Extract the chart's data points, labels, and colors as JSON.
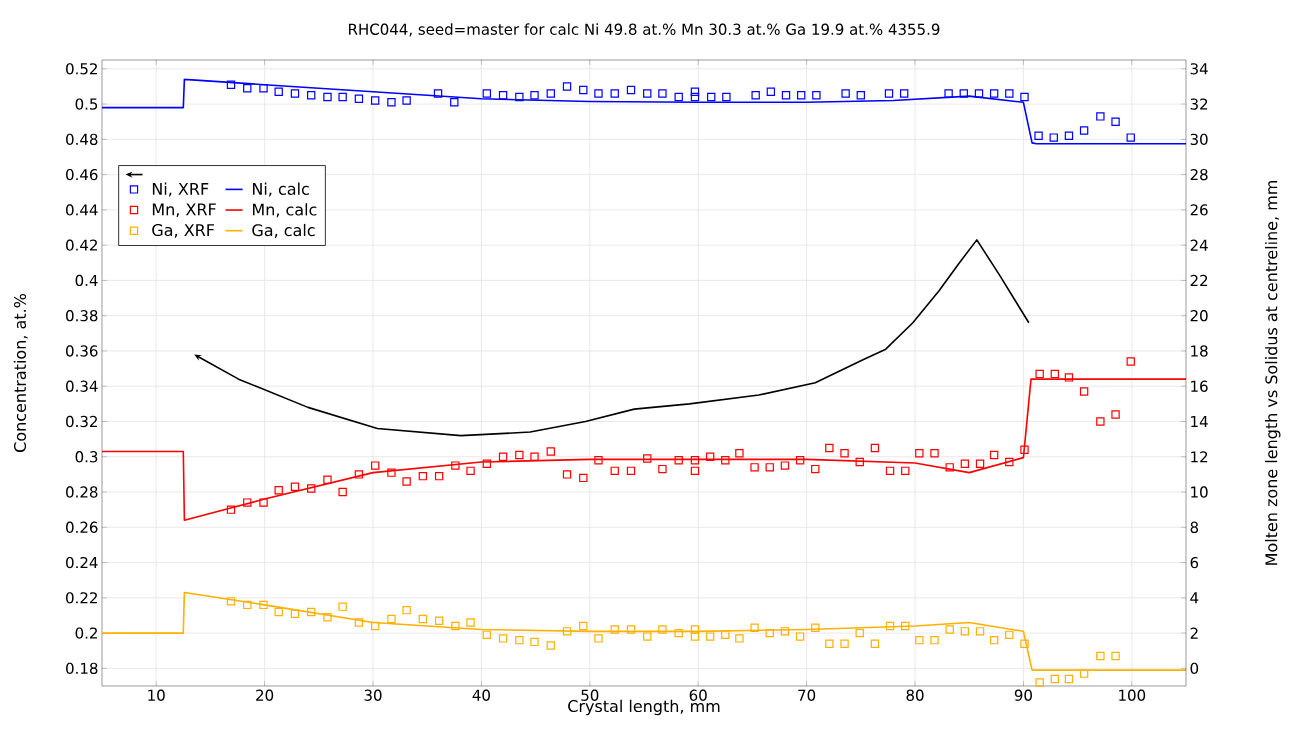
{
  "chart_data": {
    "type": "scatter",
    "title": "RHC044, seed=master for calc Ni 49.8 at.% Mn 30.3 at.% Ga 19.9 at.% 4355.9",
    "xlabel": "Crystal length, mm",
    "ylabel": "Concentration, at.%",
    "y2label": "Molten zone length vs Solidus at centreline, mm",
    "xlim": [
      5,
      105
    ],
    "xticks": [
      10,
      20,
      30,
      40,
      50,
      60,
      70,
      80,
      90,
      100
    ],
    "ylim": [
      0.17,
      0.525
    ],
    "yticks": [
      0.18,
      0.2,
      0.22,
      0.24,
      0.26,
      0.28,
      0.3,
      0.32,
      0.34,
      0.36,
      0.38,
      0.4,
      0.42,
      0.44,
      0.46,
      0.48,
      0.5,
      0.52
    ],
    "y2lim": [
      -1,
      34.5
    ],
    "y2ticks": [
      0,
      2,
      4,
      6,
      8,
      10,
      12,
      14,
      16,
      18,
      20,
      22,
      24,
      26,
      28,
      30,
      32,
      34
    ],
    "grid": true,
    "legend": "top left",
    "line_style": "solid",
    "series": [
      {
        "name": "Ni, XRF",
        "marker": "square",
        "color": "#0000ff",
        "x": [
          16.9,
          18.4,
          19.9,
          21.3,
          22.8,
          24.3,
          25.8,
          27.2,
          28.7,
          30.2,
          31.7,
          33.1,
          36.0,
          37.5,
          40.5,
          42.0,
          43.5,
          44.9,
          46.4,
          47.9,
          49.4,
          50.8,
          52.3,
          53.8,
          55.3,
          56.7,
          58.2,
          59.7,
          59.7,
          61.2,
          62.6,
          65.3,
          66.7,
          68.1,
          69.5,
          70.9,
          73.6,
          75.0,
          77.6,
          79.0,
          83.1,
          84.5,
          85.9,
          87.3,
          88.7,
          90.1,
          91.4,
          92.8,
          94.2,
          95.6,
          97.1,
          98.5,
          99.9
        ],
        "values": [
          0.511,
          0.509,
          0.509,
          0.507,
          0.506,
          0.505,
          0.504,
          0.504,
          0.503,
          0.502,
          0.501,
          0.502,
          0.506,
          0.501,
          0.506,
          0.505,
          0.504,
          0.505,
          0.506,
          0.51,
          0.508,
          0.506,
          0.506,
          0.508,
          0.506,
          0.506,
          0.504,
          0.507,
          0.504,
          0.504,
          0.504,
          0.505,
          0.507,
          0.505,
          0.505,
          0.505,
          0.506,
          0.505,
          0.506,
          0.506,
          0.506,
          0.506,
          0.506,
          0.506,
          0.506,
          0.504,
          0.482,
          0.481,
          0.482,
          0.485,
          0.493,
          0.49,
          0.481
        ]
      },
      {
        "name": "Ni, calc",
        "type": "line",
        "marker": "none",
        "color": "#0000ff",
        "x": [
          5,
          12.5,
          12.6,
          20,
          30,
          40,
          50,
          60,
          70,
          78,
          85,
          90,
          90.8,
          91.2,
          105
        ],
        "values": [
          0.498,
          0.498,
          0.514,
          0.511,
          0.507,
          0.503,
          0.5015,
          0.501,
          0.501,
          0.502,
          0.5045,
          0.501,
          0.478,
          0.4775,
          0.4775
        ]
      },
      {
        "name": "Mn, XRF",
        "marker": "square",
        "color": "#ff0000",
        "x": [
          16.9,
          18.4,
          19.9,
          21.3,
          22.8,
          24.3,
          25.8,
          27.2,
          28.7,
          30.2,
          31.7,
          33.1,
          34.6,
          36.1,
          37.6,
          39.0,
          40.5,
          42.0,
          43.5,
          44.9,
          46.4,
          47.9,
          49.4,
          50.8,
          52.3,
          53.8,
          55.3,
          56.7,
          58.2,
          59.7,
          59.7,
          61.1,
          62.5,
          63.8,
          65.2,
          66.6,
          68.0,
          69.4,
          70.8,
          72.1,
          73.5,
          74.9,
          76.3,
          77.7,
          79.1,
          80.4,
          81.8,
          83.2,
          84.6,
          86.0,
          87.3,
          88.7,
          90.1,
          91.5,
          92.9,
          94.2,
          95.6,
          97.1,
          98.5,
          99.9
        ],
        "values": [
          0.27,
          0.274,
          0.274,
          0.281,
          0.283,
          0.282,
          0.287,
          0.28,
          0.29,
          0.295,
          0.291,
          0.286,
          0.289,
          0.289,
          0.295,
          0.292,
          0.296,
          0.3,
          0.301,
          0.3,
          0.303,
          0.29,
          0.288,
          0.298,
          0.292,
          0.292,
          0.299,
          0.293,
          0.298,
          0.298,
          0.292,
          0.3,
          0.298,
          0.302,
          0.294,
          0.294,
          0.295,
          0.298,
          0.293,
          0.305,
          0.302,
          0.297,
          0.305,
          0.292,
          0.292,
          0.302,
          0.302,
          0.294,
          0.296,
          0.296,
          0.301,
          0.297,
          0.304,
          0.347,
          0.347,
          0.345,
          0.337,
          0.32,
          0.324,
          0.354
        ]
      },
      {
        "name": "Mn, calc",
        "type": "line",
        "marker": "none",
        "color": "#ff0000",
        "x": [
          5,
          12.5,
          12.6,
          20,
          30,
          40,
          50,
          60,
          70,
          80,
          85,
          90,
          90.7,
          105
        ],
        "values": [
          0.303,
          0.303,
          0.264,
          0.276,
          0.291,
          0.297,
          0.2985,
          0.2985,
          0.2985,
          0.2965,
          0.291,
          0.2995,
          0.344,
          0.344
        ]
      },
      {
        "name": "Ga, XRF",
        "marker": "square",
        "color": "#ffb000",
        "x": [
          16.9,
          18.4,
          19.9,
          21.3,
          22.8,
          24.3,
          25.8,
          27.2,
          28.7,
          30.2,
          31.7,
          33.1,
          34.6,
          36.1,
          37.6,
          39.0,
          40.5,
          42.0,
          43.5,
          44.9,
          46.4,
          47.9,
          49.4,
          50.8,
          52.3,
          53.8,
          55.3,
          56.7,
          58.2,
          59.7,
          59.7,
          61.1,
          62.5,
          63.8,
          65.2,
          66.6,
          68.0,
          69.4,
          70.8,
          72.1,
          73.5,
          74.9,
          76.3,
          77.7,
          79.1,
          80.4,
          81.8,
          83.2,
          84.6,
          86.0,
          87.3,
          88.7,
          90.1,
          91.5,
          92.9,
          94.2,
          95.6,
          97.1,
          98.5
        ],
        "values": [
          0.218,
          0.216,
          0.216,
          0.212,
          0.211,
          0.212,
          0.209,
          0.215,
          0.206,
          0.204,
          0.208,
          0.213,
          0.208,
          0.207,
          0.204,
          0.206,
          0.199,
          0.197,
          0.196,
          0.195,
          0.193,
          0.201,
          0.204,
          0.197,
          0.202,
          0.202,
          0.198,
          0.202,
          0.2,
          0.202,
          0.198,
          0.198,
          0.199,
          0.197,
          0.203,
          0.2,
          0.201,
          0.198,
          0.203,
          0.194,
          0.194,
          0.2,
          0.194,
          0.204,
          0.204,
          0.196,
          0.196,
          0.202,
          0.201,
          0.201,
          0.196,
          0.199,
          0.194,
          0.172,
          0.174,
          0.174,
          0.177,
          0.187,
          0.187
        ]
      },
      {
        "name": "Ga, calc",
        "type": "line",
        "marker": "none",
        "color": "#ffb000",
        "x": [
          5,
          12.5,
          12.6,
          20,
          30,
          40,
          50,
          60,
          70,
          80,
          85,
          90,
          90.8,
          105
        ],
        "values": [
          0.2,
          0.2,
          0.223,
          0.216,
          0.206,
          0.202,
          0.201,
          0.201,
          0.202,
          0.204,
          0.206,
          0.201,
          0.179,
          0.179
        ]
      },
      {
        "type": "line",
        "marker": "none",
        "axis": "y2",
        "color": "#000000",
        "x": [
          13.5,
          17.6,
          24.0,
          30.4,
          38.1,
          44.5,
          49.6,
          54.1,
          59.2,
          65.6,
          70.8,
          75.2,
          77.3,
          79.8,
          82.2,
          84.1,
          85.7,
          87.8,
          90.5
        ],
        "values": [
          17.8,
          16.4,
          14.8,
          13.6,
          13.2,
          13.4,
          14.0,
          14.7,
          15.0,
          15.5,
          16.2,
          17.5,
          18.1,
          19.6,
          21.4,
          23.0,
          24.3,
          22.3,
          19.6
        ]
      }
    ]
  }
}
